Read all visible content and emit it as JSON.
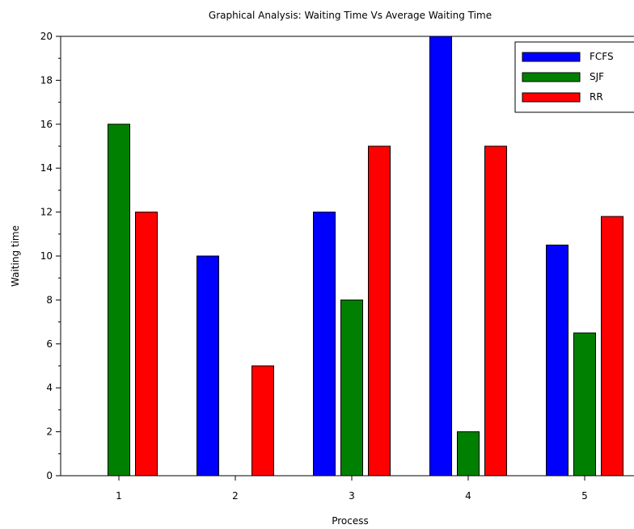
{
  "chart_data": {
    "type": "bar",
    "title": "Graphical Analysis: Waiting Time Vs Average Waiting Time",
    "xlabel": "Process",
    "ylabel": "Waiting time",
    "categories": [
      "1",
      "2",
      "3",
      "4",
      "5"
    ],
    "series": [
      {
        "name": "FCFS",
        "color": "#0000ff",
        "values": [
          0,
          10,
          12,
          20,
          10.5
        ]
      },
      {
        "name": "SJF",
        "color": "#008000",
        "values": [
          16,
          0,
          8,
          2,
          6.5
        ]
      },
      {
        "name": "RR",
        "color": "#ff0000",
        "values": [
          12,
          5,
          15,
          15,
          11.8
        ]
      }
    ],
    "ylim": [
      0,
      20
    ],
    "yticks": [
      "0",
      "2",
      "4",
      "6",
      "8",
      "10",
      "12",
      "14",
      "16",
      "18",
      "20"
    ],
    "grid": false,
    "legend_position": "top-right"
  }
}
